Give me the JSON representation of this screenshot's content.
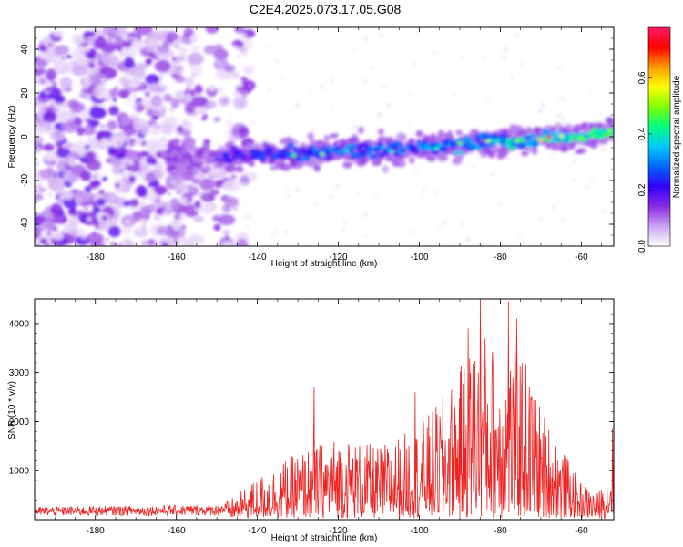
{
  "title": "C2E4.2025.073.17.05.G08",
  "chart_data": [
    {
      "type": "heatmap",
      "xlabel": "Height of straight line (km)",
      "ylabel": "Frequency (Hz)",
      "xlim": [
        -195,
        -52
      ],
      "ylim": [
        -50,
        50
      ],
      "x_ticks": [
        -180,
        -160,
        -140,
        -120,
        -100,
        -80,
        -60
      ],
      "y_ticks": [
        -40,
        -20,
        0,
        20,
        40
      ],
      "colorbar": {
        "label": "Normalized spectral amplitude",
        "range": [
          0,
          0.78
        ],
        "ticks": [
          0.0,
          0.2,
          0.4,
          0.6
        ],
        "colors": [
          "#ffffff",
          "#c9a2f2",
          "#8a2be2",
          "#3300ff",
          "#0066ff",
          "#00c8ff",
          "#00ff80",
          "#7fff00",
          "#ffff00",
          "#ff9900",
          "#ff0000",
          "#ff1a66"
        ]
      },
      "ridge": {
        "x": [
          -160,
          -150,
          -140,
          -120,
          -100,
          -80,
          -60,
          -52
        ],
        "center_hz": [
          -10,
          -9,
          -8,
          -7,
          -5,
          -2,
          0,
          3
        ]
      },
      "noise_region_x": [
        -195,
        -150
      ],
      "grid": false
    },
    {
      "type": "line",
      "xlabel": "Height of straight line (km)",
      "ylabel": "SNR (10 * v/v)",
      "xlim": [
        -195,
        -52
      ],
      "ylim": [
        0,
        4500
      ],
      "x_ticks": [
        -180,
        -160,
        -140,
        -120,
        -100,
        -80,
        -60
      ],
      "y_ticks": [
        1000,
        2000,
        3000,
        4000
      ],
      "series": [
        {
          "color": "#ee2222",
          "envelope_x": [
            -195,
            -150,
            -145,
            -140,
            -130,
            -120,
            -110,
            -100,
            -95,
            -90,
            -85,
            -80,
            -75,
            -70,
            -65,
            -60,
            -56,
            -53,
            -52
          ],
          "envelope_y": [
            200,
            250,
            450,
            800,
            1300,
            1600,
            1400,
            1800,
            2300,
            2900,
            3800,
            3200,
            3400,
            2200,
            1400,
            700,
            500,
            900,
            2800
          ],
          "peaks": [
            {
              "x": -126,
              "y": 2700
            },
            {
              "x": -101,
              "y": 2600
            },
            {
              "x": -88,
              "y": 3900
            },
            {
              "x": -85,
              "y": 4450
            },
            {
              "x": -78,
              "y": 4450
            },
            {
              "x": -76,
              "y": 4100
            },
            {
              "x": -52,
              "y": 2800
            }
          ]
        }
      ],
      "grid": false
    }
  ]
}
